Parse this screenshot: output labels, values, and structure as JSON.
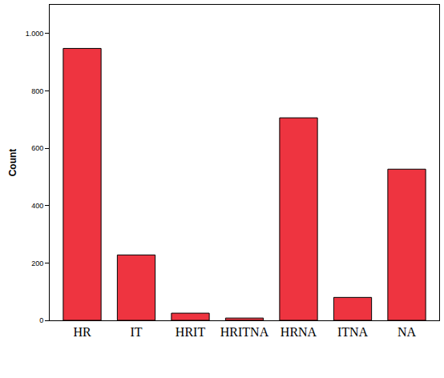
{
  "chart_data": {
    "type": "bar",
    "y_label": "Count",
    "categories": [
      "HR",
      "IT",
      "HRIT",
      "HRITNA",
      "HRNA",
      "ITNA",
      "NA"
    ],
    "values": [
      948,
      228,
      25,
      8,
      706,
      80,
      527
    ],
    "color": "#ee3440",
    "ylim": [
      0,
      1100
    ],
    "yticks": [
      0,
      200,
      400,
      600,
      800,
      {
        "value": 1000,
        "label": "1.000"
      }
    ],
    "grid": false
  }
}
